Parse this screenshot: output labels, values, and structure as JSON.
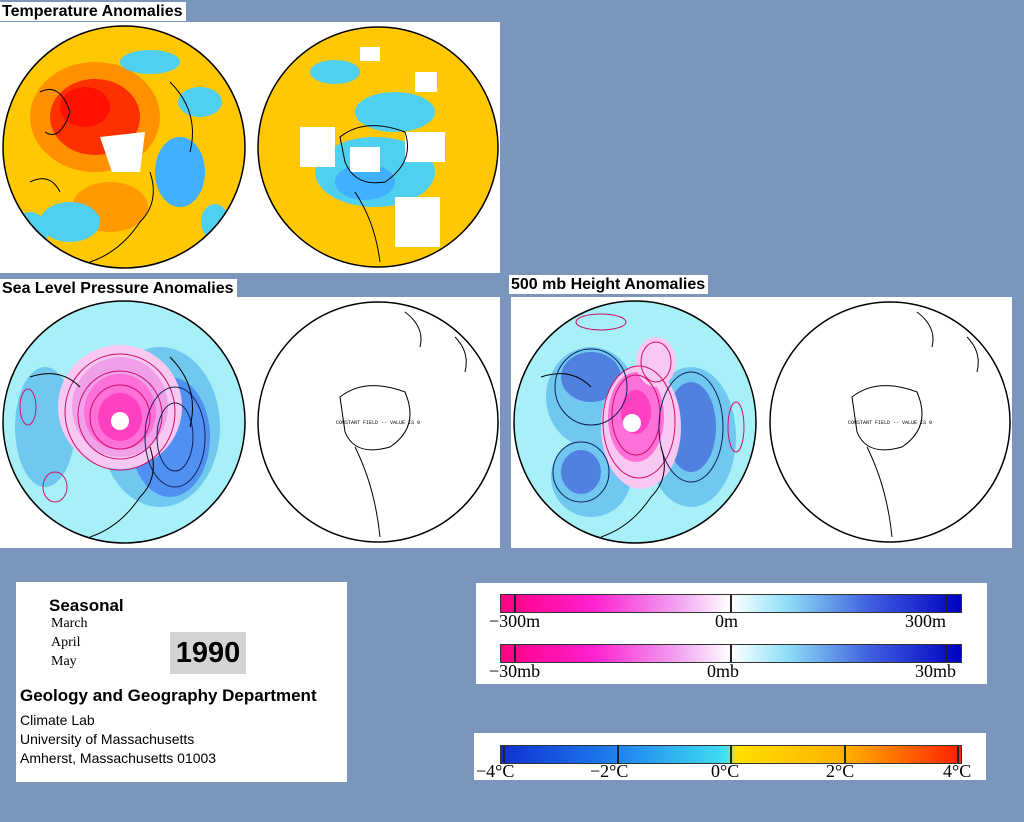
{
  "panels": {
    "temperature": {
      "title": "Temperature Anomalies"
    },
    "slp": {
      "title": "Sea Level Pressure Anomalies",
      "constant_field_text": "CONSTANT FIELD -- VALUE IS 0"
    },
    "height500": {
      "title": "500 mb Height Anomalies",
      "constant_field_text": "CONSTANT FIELD -- VALUE IS 0"
    }
  },
  "info": {
    "period": "Seasonal",
    "months": [
      "March",
      "April",
      "May"
    ],
    "year": "1990",
    "department": "Geology and Geography Department",
    "lines": [
      "Climate Lab",
      "University of Massachusetts",
      "Amherst, Massachusetts 01003"
    ]
  },
  "legends": {
    "height": {
      "left": "−300m",
      "mid": "0m",
      "right": "300m"
    },
    "pressure": {
      "left": "−30mb",
      "mid": "0mb",
      "right": "30mb"
    },
    "temperature": {
      "labels": [
        "−4°C",
        "−2°C",
        "0°C",
        "2°C",
        "4°C"
      ]
    }
  },
  "colors": {
    "background": "#7b96bd",
    "negative_pressure": "#ff0090",
    "positive_pressure": "#0000cc",
    "cold": "#1060ff",
    "warm": "#ff2000"
  }
}
